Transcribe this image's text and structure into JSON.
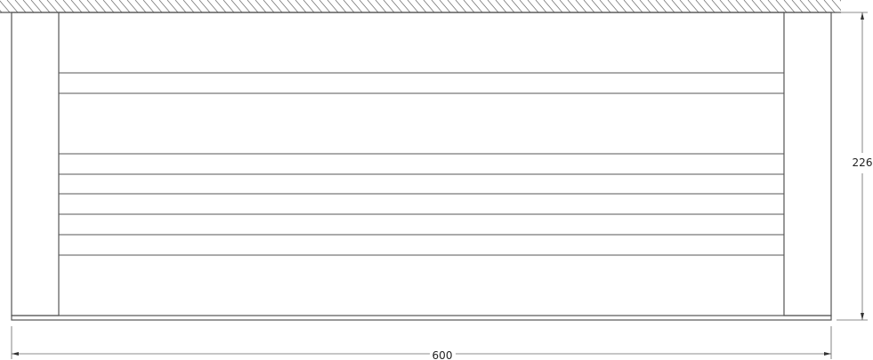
{
  "dimensions": {
    "height_label": "226",
    "width_label": "600"
  },
  "colors": {
    "line": "#555555",
    "dimension_line": "#666666"
  }
}
